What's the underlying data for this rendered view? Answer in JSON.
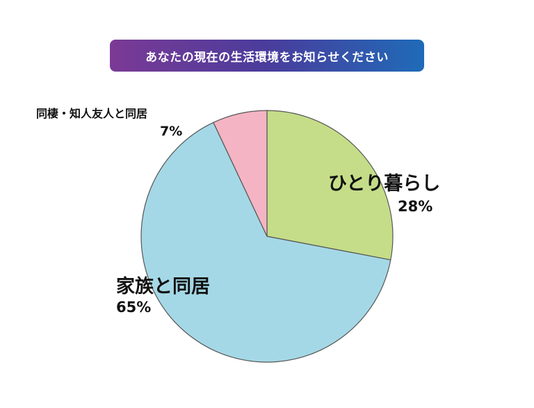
{
  "chart_data": {
    "type": "pie",
    "title": "あなたの現在の生活環境をお知らせください",
    "categories": [
      "ひとり暮らし",
      "家族と同居",
      "同棲・知人友人と同居"
    ],
    "values": [
      28,
      65,
      7
    ],
    "value_labels": [
      "28%",
      "65%",
      "7%"
    ],
    "colors": [
      "#c5dd88",
      "#a5d8e6",
      "#f4b4c3"
    ],
    "start_angle_deg": 0,
    "direction": "clockwise",
    "legend": "none"
  }
}
